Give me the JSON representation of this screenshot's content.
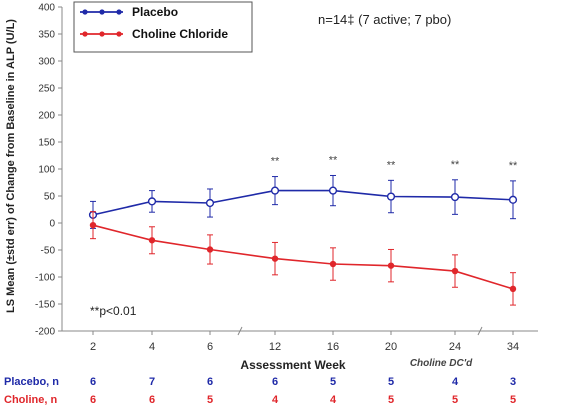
{
  "chart_data": {
    "type": "line",
    "title": "",
    "ylabel": "LS Mean (±std err) of Change from Baseline in ALP (U/L)",
    "xlabel": "Assessment Week",
    "ylim": [
      -200,
      400
    ],
    "yticks": [
      -200,
      -150,
      -100,
      -50,
      0,
      50,
      100,
      150,
      200,
      250,
      300,
      350,
      400
    ],
    "categories": [
      "2",
      "4",
      "6",
      "12",
      "16",
      "20",
      "24",
      "34"
    ],
    "x_note": "Choline DC'd",
    "annotation": "n=14‡ (7 active; 7 pbo)",
    "footnote": "**p<0.01",
    "significance_marker": "**",
    "significant_weeks": [
      "12",
      "16",
      "20",
      "24",
      "34"
    ],
    "grid": false,
    "legend_position": "top-left",
    "series": [
      {
        "name": "Placebo",
        "color": "#1f2aa8",
        "marker": "open-circle",
        "values": [
          15,
          40,
          37,
          60,
          60,
          49,
          48,
          43
        ],
        "err": [
          25,
          20,
          26,
          26,
          28,
          30,
          32,
          35
        ]
      },
      {
        "name": "Choline Chloride",
        "color": "#e0262b",
        "marker": "filled-circle",
        "values": [
          -4,
          -32,
          -49,
          -66,
          -76,
          -79,
          -89,
          -122
        ],
        "err": [
          25,
          25,
          27,
          30,
          30,
          30,
          30,
          30
        ]
      }
    ]
  },
  "n_table": {
    "rows": [
      {
        "label": "Placebo, n",
        "color": "#1f2aa8",
        "values": [
          "6",
          "7",
          "6",
          "6",
          "5",
          "5",
          "4",
          "3"
        ]
      },
      {
        "label": "Choline, n",
        "color": "#e0262b",
        "values": [
          "6",
          "6",
          "5",
          "4",
          "4",
          "5",
          "5",
          "5"
        ]
      }
    ]
  }
}
